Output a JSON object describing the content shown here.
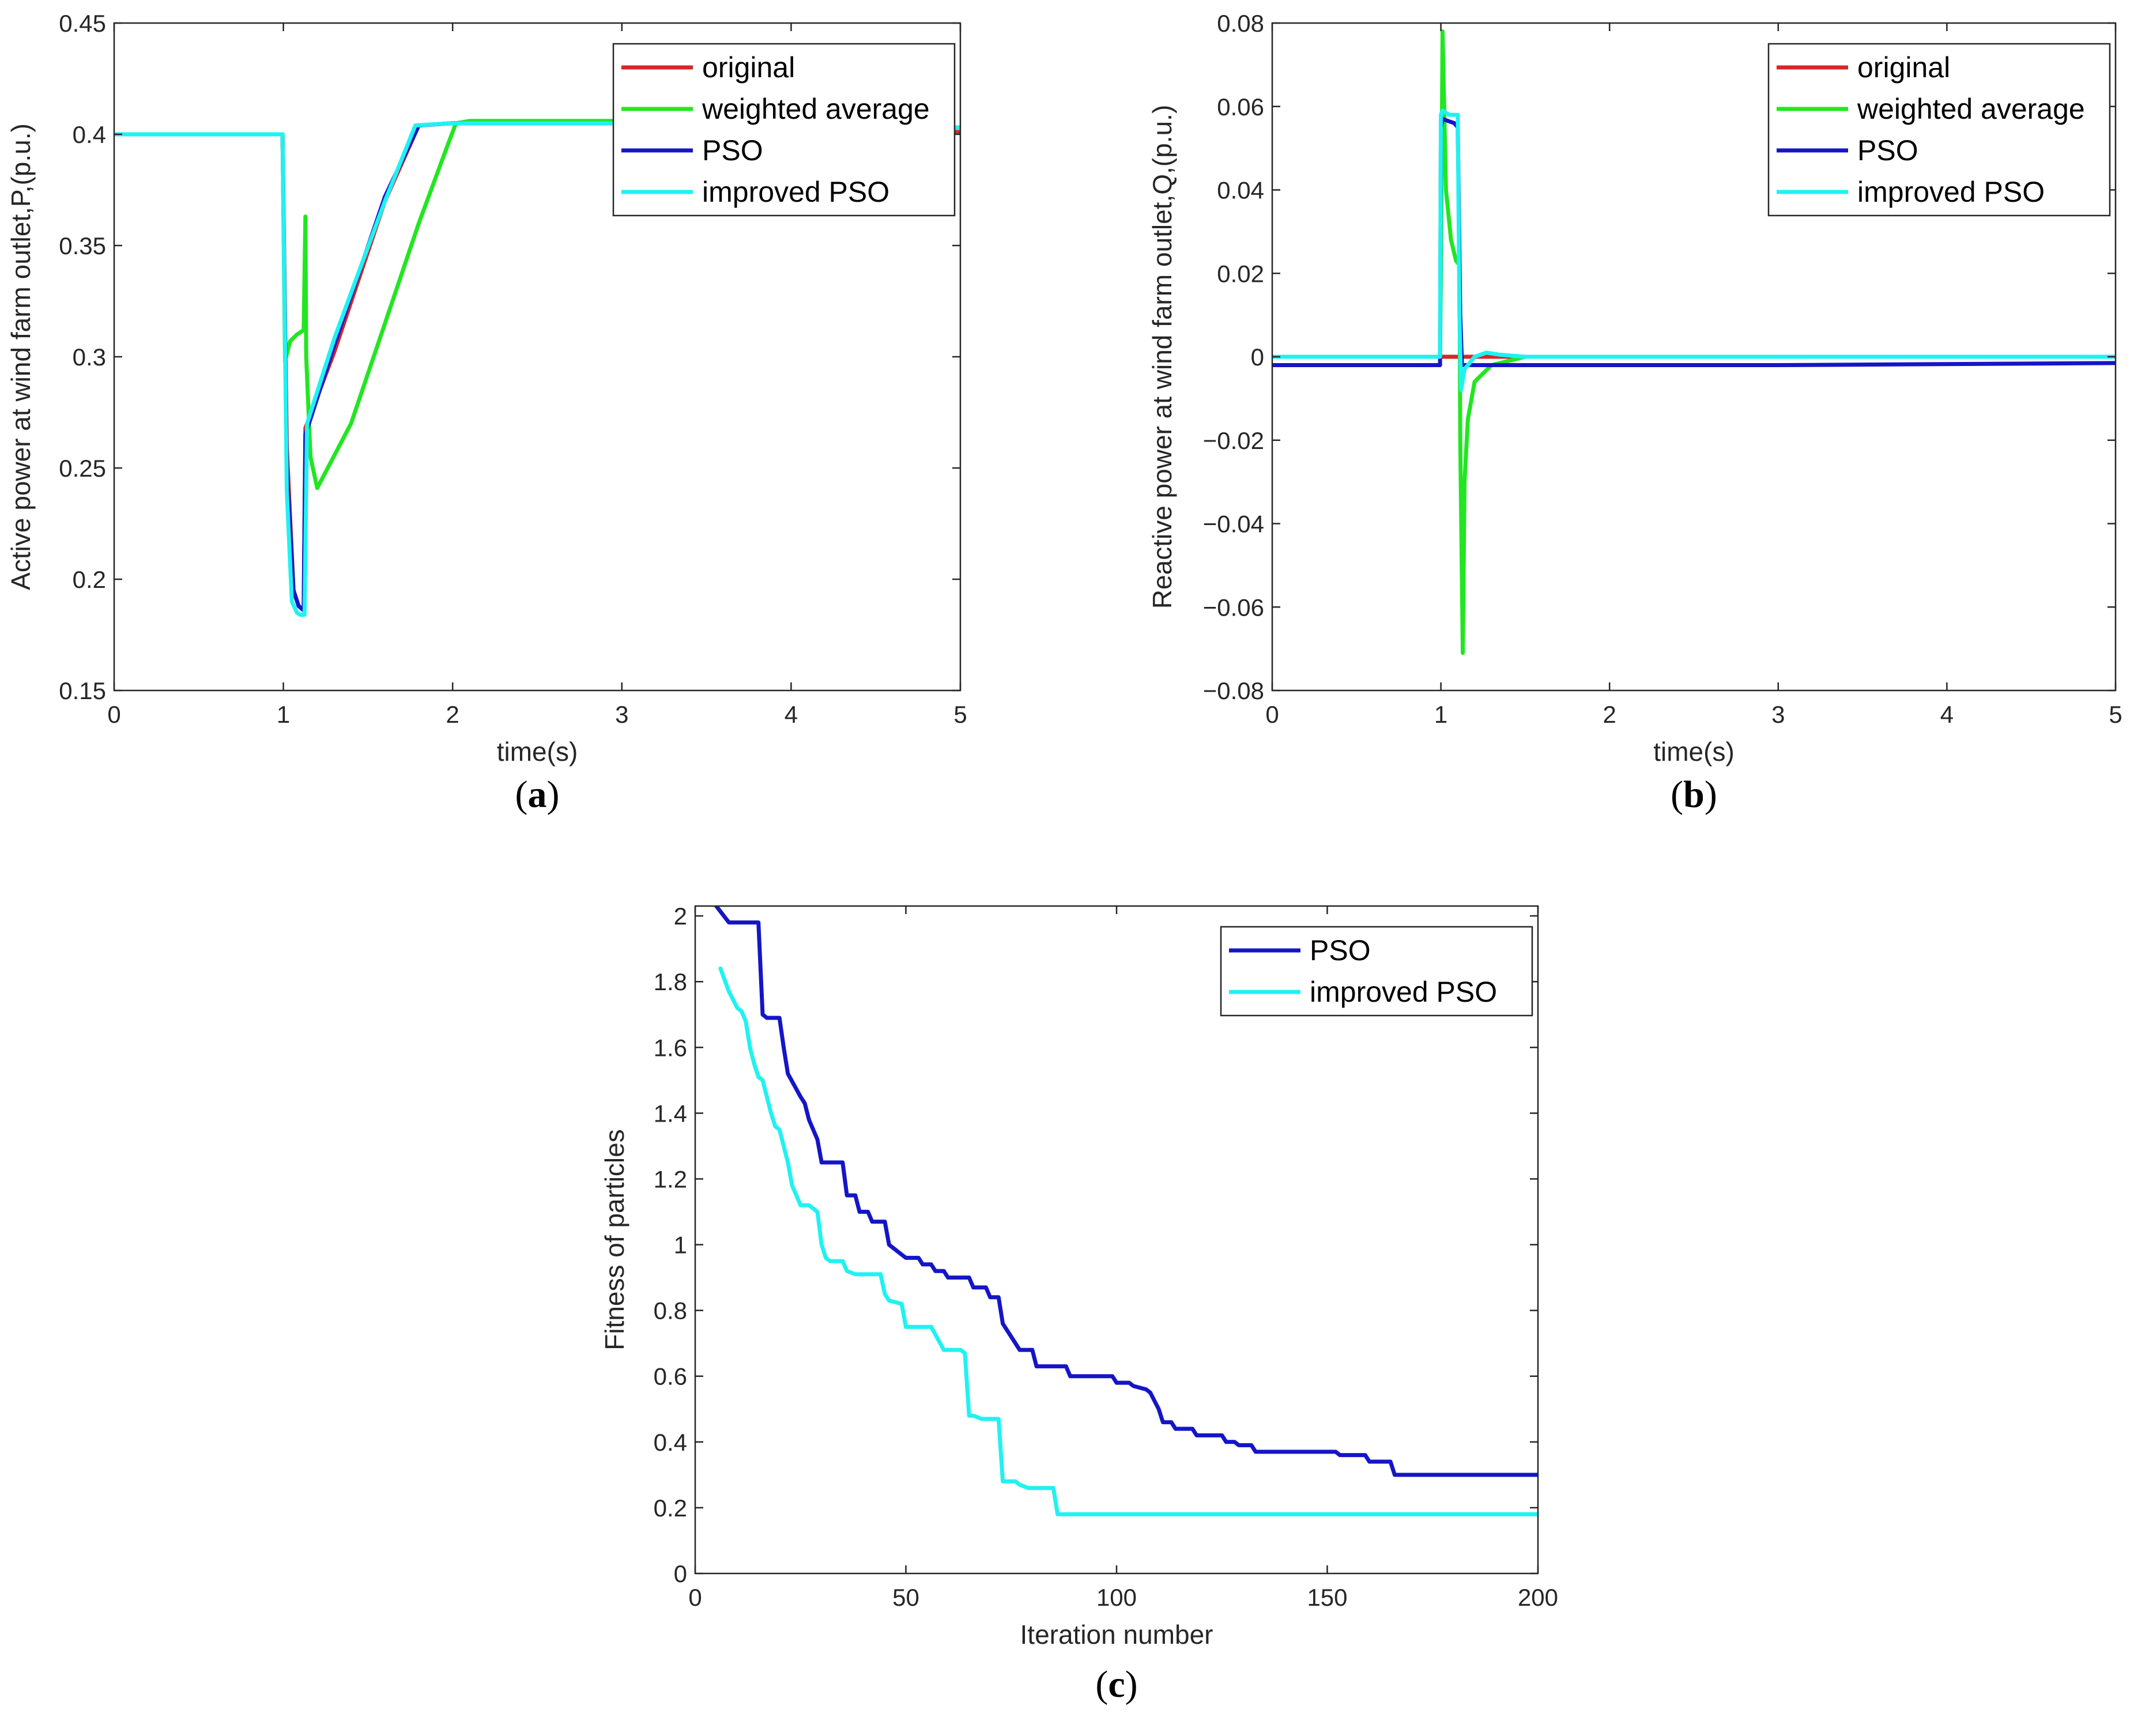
{
  "colors": {
    "original": "#d62728",
    "weighted": "#22e622",
    "pso": "#1515c8",
    "improved": "#1ff2f2",
    "axis": "#262626"
  },
  "chart_data": [
    {
      "id": "a",
      "type": "line",
      "panel_label": "a",
      "xlabel": "time(s)",
      "ylabel": "Active power at wind farm outlet,P,(p.u.)",
      "xlim": [
        0,
        5
      ],
      "ylim": [
        0.15,
        0.45
      ],
      "xticks": [
        0,
        1,
        2,
        3,
        4,
        5
      ],
      "xtick_labels": [
        "0",
        "1",
        "2",
        "3",
        "4",
        "5"
      ],
      "yticks": [
        0.15,
        0.2,
        0.25,
        0.3,
        0.35,
        0.4,
        0.45
      ],
      "ytick_labels": [
        "0.15",
        "0.2",
        "0.25",
        "0.3",
        "0.35",
        "0.4",
        "0.45"
      ],
      "legend_position": "top-right",
      "series": [
        {
          "name": "original",
          "color_key": "original",
          "x": [
            0,
            0.995,
            1.02,
            1.06,
            1.09,
            1.12,
            1.13,
            1.3,
            1.6,
            1.8,
            2.0,
            3.0,
            4.0,
            5.0
          ],
          "y": [
            0.4,
            0.4,
            0.26,
            0.195,
            0.188,
            0.186,
            0.268,
            0.302,
            0.37,
            0.404,
            0.405,
            0.405,
            0.404,
            0.401
          ]
        },
        {
          "name": "weighted average",
          "color_key": "weighted",
          "x": [
            0,
            0.995,
            1.01,
            1.04,
            1.08,
            1.12,
            1.13,
            1.135,
            1.16,
            1.2,
            1.4,
            1.6,
            1.8,
            1.97,
            2.02,
            2.1,
            3.0,
            4.0,
            5.0
          ],
          "y": [
            0.4,
            0.4,
            0.298,
            0.307,
            0.31,
            0.312,
            0.363,
            0.3,
            0.255,
            0.241,
            0.27,
            0.315,
            0.36,
            0.395,
            0.405,
            0.406,
            0.406,
            0.405,
            0.403
          ]
        },
        {
          "name": "PSO",
          "color_key": "pso",
          "x": [
            0,
            0.995,
            1.02,
            1.06,
            1.09,
            1.12,
            1.13,
            1.3,
            1.6,
            1.8,
            2.0,
            3.0,
            4.0,
            5.0
          ],
          "y": [
            0.4,
            0.4,
            0.25,
            0.195,
            0.188,
            0.186,
            0.265,
            0.305,
            0.372,
            0.404,
            0.405,
            0.405,
            0.404,
            0.403
          ]
        },
        {
          "name": "improved PSO",
          "color_key": "improved",
          "x": [
            0,
            0.995,
            1.02,
            1.05,
            1.08,
            1.1,
            1.125,
            1.14,
            1.3,
            1.6,
            1.78,
            2.0,
            3.0,
            4.0,
            5.0
          ],
          "y": [
            0.4,
            0.4,
            0.24,
            0.19,
            0.185,
            0.184,
            0.184,
            0.27,
            0.308,
            0.37,
            0.404,
            0.405,
            0.405,
            0.404,
            0.403
          ]
        }
      ]
    },
    {
      "id": "b",
      "type": "line",
      "panel_label": "b",
      "xlabel": "time(s)",
      "ylabel": "Reactive power at wind farm outlet,Q,(p.u.)",
      "xlim": [
        0,
        5
      ],
      "ylim": [
        -0.08,
        0.08
      ],
      "xticks": [
        0,
        1,
        2,
        3,
        4,
        5
      ],
      "xtick_labels": [
        "0",
        "1",
        "2",
        "3",
        "4",
        "5"
      ],
      "yticks": [
        -0.08,
        -0.06,
        -0.04,
        -0.02,
        0,
        0.02,
        0.04,
        0.06,
        0.08
      ],
      "ytick_labels": [
        "−0.08",
        "−0.06",
        "−0.04",
        "−0.02",
        "0",
        "0.02",
        "0.04",
        "0.06",
        "0.08"
      ],
      "legend_position": "top-right",
      "series": [
        {
          "name": "original",
          "color_key": "original",
          "x": [
            0,
            0.995,
            1.0,
            1.12,
            1.13,
            1.3,
            5.0
          ],
          "y": [
            0,
            0,
            0,
            0,
            0,
            0,
            0
          ]
        },
        {
          "name": "weighted average",
          "color_key": "weighted",
          "x": [
            0,
            0.995,
            1.0,
            1.01,
            1.03,
            1.06,
            1.09,
            1.11,
            1.115,
            1.13,
            1.14,
            1.16,
            1.2,
            1.3,
            1.5,
            5.0
          ],
          "y": [
            0,
            0,
            0.02,
            0.078,
            0.04,
            0.028,
            0.023,
            0.022,
            -0.02,
            -0.071,
            -0.03,
            -0.015,
            -0.006,
            -0.002,
            0,
            0
          ]
        },
        {
          "name": "PSO",
          "color_key": "pso",
          "x": [
            0,
            0.995,
            1.0,
            1.01,
            1.08,
            1.1,
            1.115,
            1.125,
            1.3,
            3.0,
            5.0
          ],
          "y": [
            -0.002,
            -0.002,
            0.055,
            0.057,
            0.056,
            0.055,
            0.01,
            -0.002,
            -0.002,
            -0.002,
            -0.0015
          ]
        },
        {
          "name": "improved PSO",
          "color_key": "improved",
          "x": [
            0,
            0.995,
            1.0,
            1.01,
            1.05,
            1.1,
            1.11,
            1.12,
            1.14,
            1.2,
            1.27,
            1.35,
            1.5,
            5.0
          ],
          "y": [
            0,
            0,
            0.058,
            0.059,
            0.058,
            0.058,
            0.01,
            -0.008,
            -0.003,
            0.0,
            0.001,
            0.0005,
            0,
            0
          ]
        }
      ]
    },
    {
      "id": "c",
      "type": "line",
      "panel_label": "c",
      "xlabel": "Iteration number",
      "ylabel": "Fitness of particles",
      "xlim": [
        0,
        200
      ],
      "ylim": [
        0,
        2.03
      ],
      "xticks": [
        0,
        50,
        100,
        150,
        200
      ],
      "xtick_labels": [
        "0",
        "50",
        "100",
        "150",
        "200"
      ],
      "yticks": [
        0,
        0.2,
        0.4,
        0.6,
        0.8,
        1,
        1.2,
        1.4,
        1.6,
        1.8,
        2
      ],
      "ytick_labels": [
        "0",
        "0.2",
        "0.4",
        "0.6",
        "0.8",
        "1",
        "1.2",
        "1.4",
        "1.6",
        "1.8",
        "2"
      ],
      "legend_position": "top-right",
      "series": [
        {
          "name": "PSO",
          "color_key": "pso",
          "x": [
            5,
            8,
            15,
            16,
            17,
            20,
            21,
            22,
            25,
            26,
            27,
            29,
            30,
            35,
            36,
            38,
            39,
            41,
            42,
            45,
            46,
            49,
            50,
            53,
            54,
            56,
            57,
            59,
            60,
            65,
            66,
            69,
            70,
            72,
            73,
            76,
            77,
            80,
            81,
            88,
            89,
            99,
            100,
            103,
            104,
            107,
            108,
            110,
            111,
            113,
            114,
            118,
            119,
            125,
            126,
            128,
            129,
            132,
            133,
            152,
            153,
            159,
            160,
            165,
            166,
            200
          ],
          "y": [
            2.03,
            1.98,
            1.98,
            1.7,
            1.69,
            1.69,
            1.6,
            1.52,
            1.45,
            1.43,
            1.38,
            1.32,
            1.25,
            1.25,
            1.15,
            1.15,
            1.1,
            1.1,
            1.07,
            1.07,
            1.0,
            0.97,
            0.96,
            0.96,
            0.94,
            0.94,
            0.92,
            0.92,
            0.9,
            0.9,
            0.87,
            0.87,
            0.84,
            0.84,
            0.76,
            0.7,
            0.68,
            0.68,
            0.63,
            0.63,
            0.6,
            0.6,
            0.58,
            0.58,
            0.57,
            0.56,
            0.55,
            0.5,
            0.46,
            0.46,
            0.44,
            0.44,
            0.42,
            0.42,
            0.4,
            0.4,
            0.39,
            0.39,
            0.37,
            0.37,
            0.36,
            0.36,
            0.34,
            0.34,
            0.3,
            0.3
          ]
        },
        {
          "name": "improved PSO",
          "color_key": "improved",
          "x": [
            6,
            8,
            10,
            11,
            12,
            13,
            14,
            15,
            16,
            18,
            19,
            20,
            21,
            22,
            23,
            25,
            26,
            27,
            29,
            30,
            31,
            32,
            35,
            36,
            38,
            39,
            44,
            45,
            46,
            49,
            50,
            55,
            56,
            59,
            60,
            63,
            64,
            65,
            66,
            68,
            69,
            72,
            73,
            74,
            76,
            77,
            79,
            80,
            85,
            86,
            100,
            101,
            200
          ],
          "y": [
            1.84,
            1.77,
            1.72,
            1.71,
            1.68,
            1.6,
            1.55,
            1.51,
            1.5,
            1.4,
            1.36,
            1.35,
            1.3,
            1.25,
            1.18,
            1.12,
            1.12,
            1.12,
            1.1,
            1.0,
            0.96,
            0.95,
            0.95,
            0.92,
            0.91,
            0.91,
            0.91,
            0.85,
            0.83,
            0.82,
            0.75,
            0.75,
            0.75,
            0.68,
            0.68,
            0.68,
            0.67,
            0.48,
            0.48,
            0.47,
            0.47,
            0.47,
            0.28,
            0.28,
            0.28,
            0.27,
            0.26,
            0.26,
            0.26,
            0.18,
            0.18,
            0.18,
            0.18
          ]
        }
      ]
    }
  ]
}
